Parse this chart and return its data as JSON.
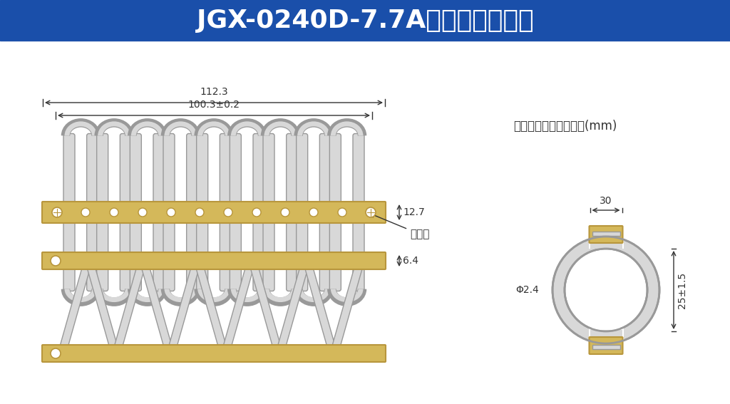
{
  "title": "JGX-0240D-7.7A产品结构示意图",
  "title_bg_color": "#1a4faa",
  "title_text_color": "#ffffff",
  "bg_color": "#f0f0f0",
  "draw_bg_color": "#ffffff",
  "brass_color": "#d4b85a",
  "brass_edge_color": "#b8963c",
  "wire_color": "#d8d8d8",
  "wire_edge_color": "#999999",
  "dim_color": "#333333",
  "note_text": "注：所有尺寸均为毫米(mm)",
  "dim_112": "112.3",
  "dim_100": "100.3±0.2",
  "dim_127": "12.7",
  "dim_64": "6.4",
  "dim_30": "30",
  "dim_phi": "Φ2.4",
  "dim_25": "25±1.5",
  "label_hole": "安装孔"
}
